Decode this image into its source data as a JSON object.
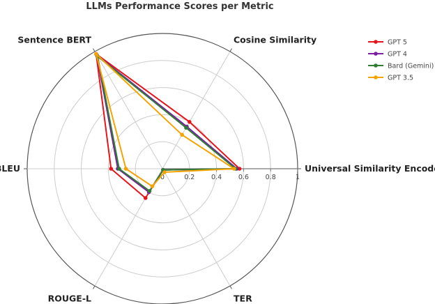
{
  "chart_data": {
    "type": "radar",
    "title": "LLMs Performance Scores per Metric",
    "axes": [
      "Universal Similarity Encoder",
      "Cosine Similarity",
      "Sentence BERT",
      "BLEU",
      "ROUGE-L",
      "TER"
    ],
    "radial_range": [
      0,
      1
    ],
    "radial_ticks": [
      0,
      0.2,
      0.4,
      0.6,
      0.8,
      1
    ],
    "radial_tick_labels": [
      "0",
      "0.2",
      "0.4",
      "0.6",
      "0.8",
      "1"
    ],
    "grid": true,
    "legend_position": "top-right",
    "series": [
      {
        "name": "GPT 5",
        "color": "#e8141b",
        "values": [
          0.57,
          0.4,
          0.98,
          0.38,
          0.25,
          0.01
        ]
      },
      {
        "name": "GPT 4",
        "color": "#7a1fa2",
        "values": [
          0.55,
          0.36,
          0.97,
          0.33,
          0.2,
          0.01
        ]
      },
      {
        "name": "Bard (Gemini)",
        "color": "#2e7d32",
        "values": [
          0.54,
          0.35,
          0.96,
          0.32,
          0.19,
          0.01
        ]
      },
      {
        "name": "GPT 3.5",
        "color": "#f4a300",
        "values": [
          0.53,
          0.29,
          0.98,
          0.27,
          0.15,
          0.03
        ]
      }
    ]
  }
}
